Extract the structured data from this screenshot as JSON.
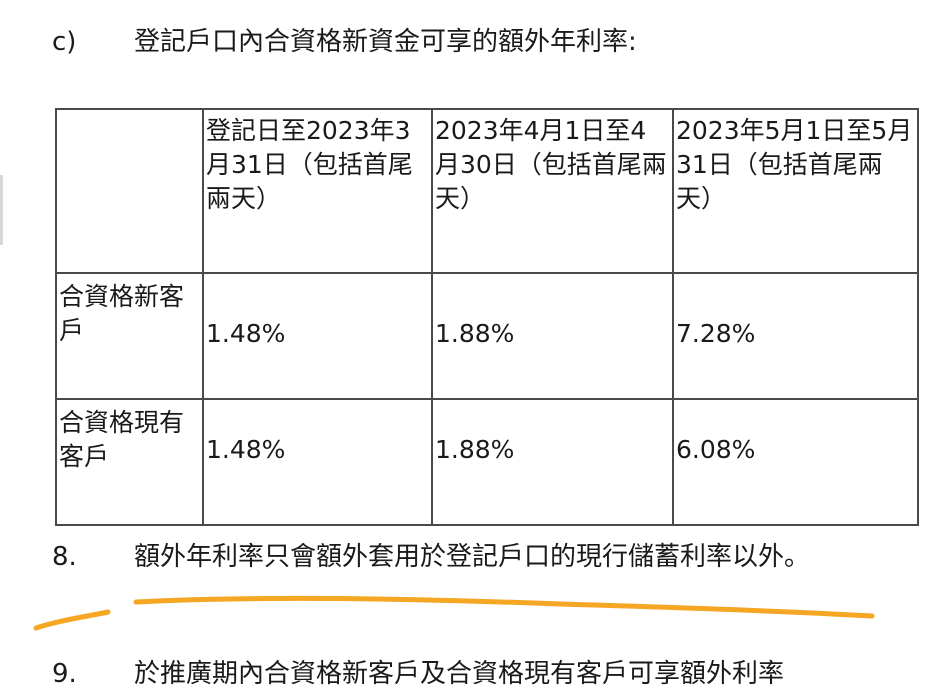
{
  "section_c": {
    "marker": "c)",
    "text": "登記戶口內合資格新資金可享的額外年利率:"
  },
  "table": {
    "headers": [
      "",
      "登記日至2023年3月31日（包括首尾兩天）",
      "2023年4月1日至4月30日（包括首尾兩天）",
      "2023年5月1日至5月31日（包括首尾兩天）"
    ],
    "rows": [
      {
        "label": "合資格新客戶",
        "values": [
          "1.48%",
          "1.88%",
          "7.28%"
        ]
      },
      {
        "label": "合資格現有客戶",
        "values": [
          "1.48%",
          "1.88%",
          "6.08%"
        ]
      }
    ]
  },
  "note_8": {
    "marker": "8.",
    "text": "額外年利率只會額外套用於登記戶口的現行儲蓄利率以外。"
  },
  "next_line": {
    "marker": "9.",
    "text": "於推廣期內合資格新客戶及合資格現有客戶可享額外利率"
  },
  "annotation": {
    "color": "#f5a623"
  }
}
